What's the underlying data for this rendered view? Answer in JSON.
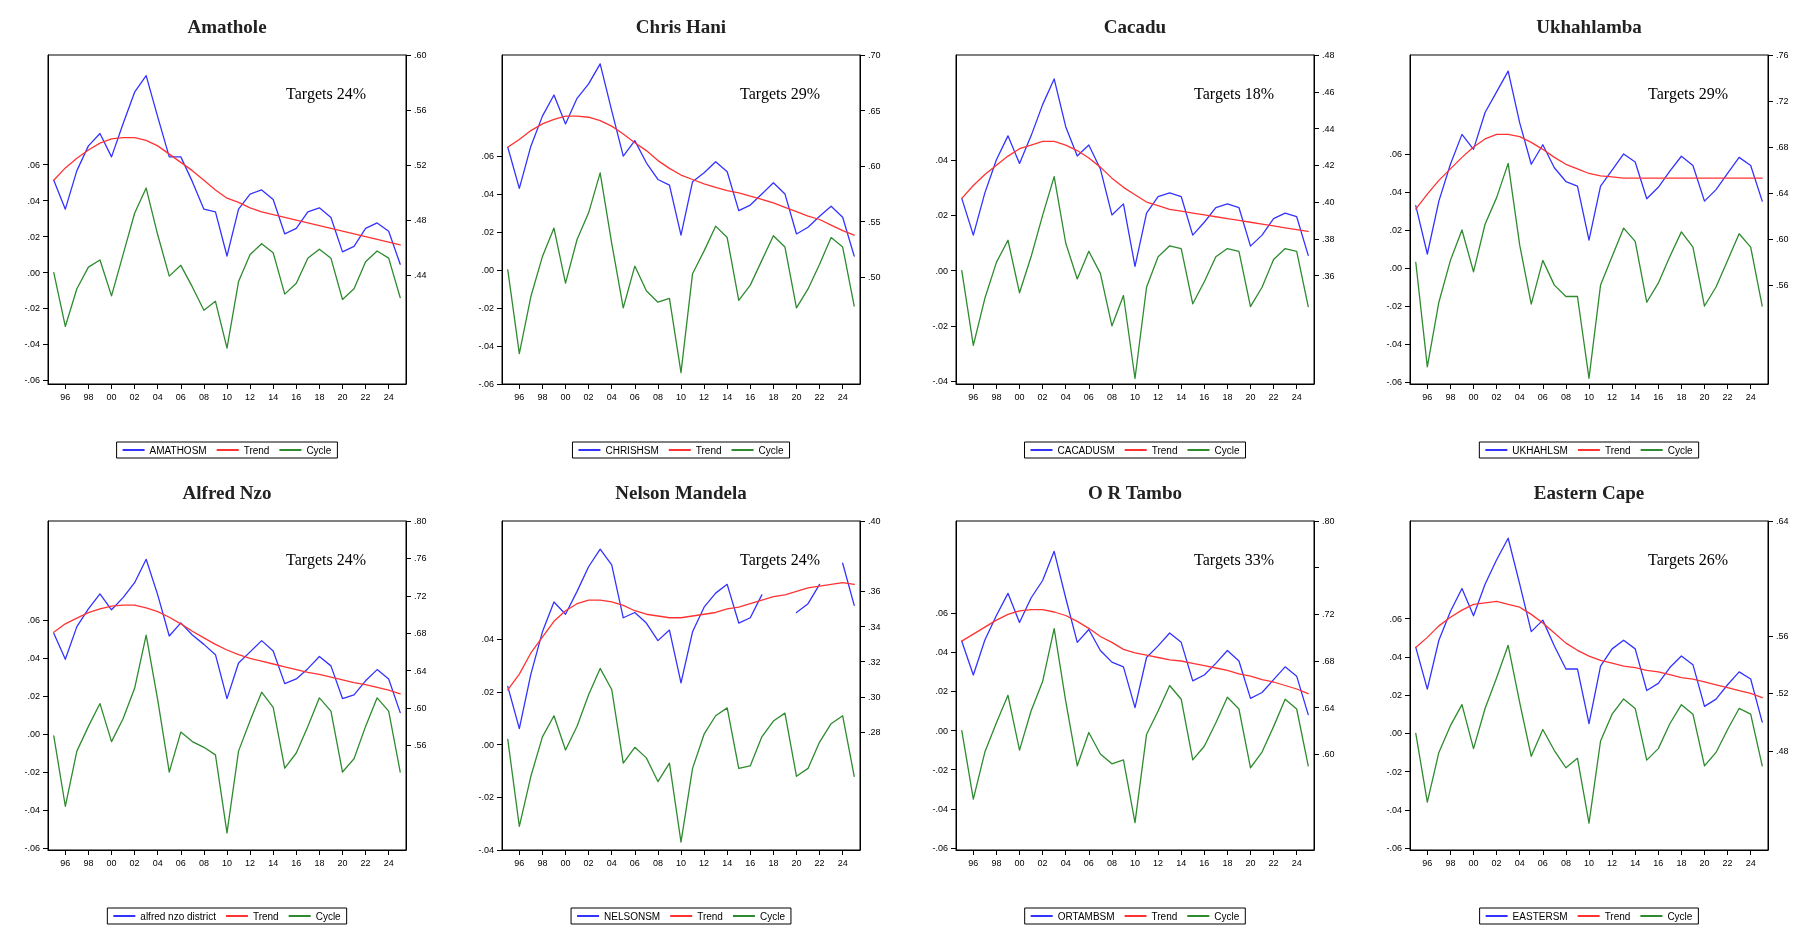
{
  "chart_data": [
    {
      "type": "line",
      "title": "Amathole",
      "annotations": [
        "Targets 24%"
      ],
      "legend": "bottom",
      "x": [
        1995,
        1996,
        1997,
        1998,
        1999,
        2000,
        2001,
        2002,
        2003,
        2004,
        2005,
        2006,
        2007,
        2008,
        2009,
        2010,
        2011,
        2012,
        2013,
        2014,
        2015,
        2016,
        2017,
        2018,
        2019,
        2020,
        2021,
        2022,
        2023,
        2024,
        2025
      ],
      "xlim": [
        1994.5,
        2025.5
      ],
      "xticks": [
        {
          "value": 1996,
          "label": "96"
        },
        {
          "value": 1998,
          "label": "98"
        },
        {
          "value": 2000,
          "label": "00"
        },
        {
          "value": 2002,
          "label": "02"
        },
        {
          "value": 2004,
          "label": "04"
        },
        {
          "value": 2006,
          "label": "06"
        },
        {
          "value": 2008,
          "label": "08"
        },
        {
          "value": 2010,
          "label": "10"
        },
        {
          "value": 2012,
          "label": "12"
        },
        {
          "value": 2014,
          "label": "14"
        },
        {
          "value": 2016,
          "label": "16"
        },
        {
          "value": 2018,
          "label": "18"
        },
        {
          "value": 2020,
          "label": "20"
        },
        {
          "value": 2022,
          "label": "22"
        },
        {
          "value": 2024,
          "label": "24"
        }
      ],
      "ylim": [
        -0.062,
        0.121
      ],
      "yticks": [
        {
          "value": -0.06,
          "label": "-.06"
        },
        {
          "value": -0.04,
          "label": "-.04"
        },
        {
          "value": -0.02,
          "label": "-.02"
        },
        {
          "value": 0,
          "label": ".00"
        },
        {
          "value": 0.02,
          "label": ".02"
        },
        {
          "value": 0.04,
          "label": ".04"
        },
        {
          "value": 0.06,
          "label": ".06"
        }
      ],
      "y2lim": [
        0.361,
        0.6
      ],
      "y2ticks": [
        {
          "value": 0.44,
          "label": ".44"
        },
        {
          "value": 0.48,
          "label": ".48"
        },
        {
          "value": 0.52,
          "label": ".52"
        },
        {
          "value": 0.56,
          "label": ".56"
        },
        {
          "value": 0.6,
          "label": ".60"
        }
      ],
      "series": [
        {
          "name": "AMATHOSM",
          "color": "#3333ff",
          "axis": "y2",
          "values": [
            0.509,
            0.488,
            0.516,
            0.534,
            0.543,
            0.526,
            0.55,
            0.573,
            0.585,
            0.555,
            0.526,
            0.526,
            0.508,
            0.488,
            0.486,
            0.454,
            0.488,
            0.499,
            0.502,
            0.495,
            0.47,
            0.474,
            0.486,
            0.489,
            0.482,
            0.457,
            0.461,
            0.474,
            0.478,
            0.472,
            0.448
          ]
        },
        {
          "name": "Trend",
          "color": "#ff3333",
          "axis": "y2",
          "values": [
            0.509,
            0.518,
            0.525,
            0.531,
            0.536,
            0.539,
            0.54,
            0.54,
            0.538,
            0.534,
            0.528,
            0.522,
            0.516,
            0.509,
            0.502,
            0.496,
            0.493,
            0.489,
            0.486,
            0.484,
            0.482,
            0.48,
            0.478,
            0.476,
            0.474,
            0.472,
            0.47,
            0.468,
            0.466,
            0.464,
            0.462
          ]
        },
        {
          "name": "Cycle",
          "color": "#2e8b2e",
          "values": [
            0,
            -0.03,
            -0.009,
            0.003,
            0.007,
            -0.013,
            0.01,
            0.033,
            0.047,
            0.021,
            -0.002,
            0.004,
            -0.008,
            -0.021,
            -0.016,
            -0.042,
            -0.005,
            0.01,
            0.016,
            0.011,
            -0.012,
            -0.006,
            0.008,
            0.013,
            0.008,
            -0.015,
            -0.009,
            0.006,
            0.012,
            0.008,
            -0.014
          ]
        }
      ]
    },
    {
      "type": "line",
      "title": "Chris Hani",
      "annotations": [
        "Targets 29%"
      ],
      "legend": "bottom",
      "x": [
        1995,
        1996,
        1997,
        1998,
        1999,
        2000,
        2001,
        2002,
        2003,
        2004,
        2005,
        2006,
        2007,
        2008,
        2009,
        2010,
        2011,
        2012,
        2013,
        2014,
        2015,
        2016,
        2017,
        2018,
        2019,
        2020,
        2021,
        2022,
        2023,
        2024,
        2025
      ],
      "xlim": [
        1994.5,
        2025.5
      ],
      "xticks": [
        {
          "value": 1996,
          "label": "96"
        },
        {
          "value": 1998,
          "label": "98"
        },
        {
          "value": 2000,
          "label": "00"
        },
        {
          "value": 2002,
          "label": "02"
        },
        {
          "value": 2004,
          "label": "04"
        },
        {
          "value": 2006,
          "label": "06"
        },
        {
          "value": 2008,
          "label": "08"
        },
        {
          "value": 2010,
          "label": "10"
        },
        {
          "value": 2012,
          "label": "12"
        },
        {
          "value": 2014,
          "label": "14"
        },
        {
          "value": 2016,
          "label": "16"
        },
        {
          "value": 2018,
          "label": "18"
        },
        {
          "value": 2020,
          "label": "20"
        },
        {
          "value": 2022,
          "label": "22"
        },
        {
          "value": 2024,
          "label": "24"
        }
      ],
      "ylim": [
        -0.06,
        0.113
      ],
      "yticks": [
        {
          "value": -0.06,
          "label": "-.06"
        },
        {
          "value": -0.04,
          "label": "-.04"
        },
        {
          "value": -0.02,
          "label": "-.02"
        },
        {
          "value": 0,
          "label": ".00"
        },
        {
          "value": 0.02,
          "label": ".02"
        },
        {
          "value": 0.04,
          "label": ".04"
        },
        {
          "value": 0.06,
          "label": ".06"
        }
      ],
      "y2lim": [
        0.404,
        0.7
      ],
      "y2ticks": [
        {
          "value": 0.5,
          "label": ".50"
        },
        {
          "value": 0.55,
          "label": ".55"
        },
        {
          "value": 0.6,
          "label": ".60"
        },
        {
          "value": 0.65,
          "label": ".65"
        },
        {
          "value": 0.7,
          "label": ".70"
        }
      ],
      "series": [
        {
          "name": "CHRISHSM",
          "color": "#3333ff",
          "axis": "y2",
          "values": [
            0.617,
            0.58,
            0.618,
            0.645,
            0.664,
            0.638,
            0.661,
            0.674,
            0.692,
            0.65,
            0.609,
            0.623,
            0.603,
            0.588,
            0.583,
            0.538,
            0.586,
            0.594,
            0.604,
            0.595,
            0.56,
            0.565,
            0.575,
            0.585,
            0.575,
            0.539,
            0.545,
            0.555,
            0.564,
            0.554,
            0.519
          ]
        },
        {
          "name": "Trend",
          "color": "#ff3333",
          "axis": "y2",
          "values": [
            0.617,
            0.624,
            0.632,
            0.638,
            0.642,
            0.645,
            0.645,
            0.644,
            0.641,
            0.636,
            0.629,
            0.621,
            0.614,
            0.605,
            0.598,
            0.592,
            0.588,
            0.584,
            0.581,
            0.578,
            0.576,
            0.573,
            0.57,
            0.567,
            0.563,
            0.559,
            0.555,
            0.552,
            0.547,
            0.542,
            0.538
          ]
        },
        {
          "name": "Cycle",
          "color": "#2e8b2e",
          "values": [
            0,
            -0.044,
            -0.014,
            0.007,
            0.022,
            -0.007,
            0.016,
            0.03,
            0.051,
            0.014,
            -0.02,
            0.002,
            -0.011,
            -0.017,
            -0.015,
            -0.054,
            -0.002,
            0.01,
            0.023,
            0.017,
            -0.016,
            -0.008,
            0.005,
            0.018,
            0.012,
            -0.02,
            -0.01,
            0.003,
            0.017,
            0.012,
            -0.019
          ]
        }
      ]
    },
    {
      "type": "line",
      "title": "Cacadu",
      "annotations": [
        "Targets 18%"
      ],
      "legend": "bottom",
      "x": [
        1995,
        1996,
        1997,
        1998,
        1999,
        2000,
        2001,
        2002,
        2003,
        2004,
        2005,
        2006,
        2007,
        2008,
        2009,
        2010,
        2011,
        2012,
        2013,
        2014,
        2015,
        2016,
        2017,
        2018,
        2019,
        2020,
        2021,
        2022,
        2023,
        2024,
        2025
      ],
      "xlim": [
        1994.5,
        2025.5
      ],
      "xticks": [
        {
          "value": 1996,
          "label": "96"
        },
        {
          "value": 1998,
          "label": "98"
        },
        {
          "value": 2000,
          "label": "00"
        },
        {
          "value": 2002,
          "label": "02"
        },
        {
          "value": 2004,
          "label": "04"
        },
        {
          "value": 2006,
          "label": "06"
        },
        {
          "value": 2008,
          "label": "08"
        },
        {
          "value": 2010,
          "label": "10"
        },
        {
          "value": 2012,
          "label": "12"
        },
        {
          "value": 2014,
          "label": "14"
        },
        {
          "value": 2016,
          "label": "16"
        },
        {
          "value": 2018,
          "label": "18"
        },
        {
          "value": 2020,
          "label": "20"
        },
        {
          "value": 2022,
          "label": "22"
        },
        {
          "value": 2024,
          "label": "24"
        }
      ],
      "ylim": [
        -0.041,
        0.078
      ],
      "yticks": [
        {
          "value": -0.04,
          "label": "-.04"
        },
        {
          "value": -0.02,
          "label": "-.02"
        },
        {
          "value": 0,
          "label": ".00"
        },
        {
          "value": 0.02,
          "label": ".02"
        },
        {
          "value": 0.04,
          "label": ".04"
        }
      ],
      "y2lim": [
        0.301,
        0.48
      ],
      "y2ticks": [
        {
          "value": 0.36,
          "label": ".36"
        },
        {
          "value": 0.38,
          "label": ".38"
        },
        {
          "value": 0.4,
          "label": ".40"
        },
        {
          "value": 0.42,
          "label": ".42"
        },
        {
          "value": 0.44,
          "label": ".44"
        },
        {
          "value": 0.46,
          "label": ".46"
        },
        {
          "value": 0.48,
          "label": ".48"
        }
      ],
      "series": [
        {
          "name": "CACADUSM",
          "color": "#3333ff",
          "axis": "y2",
          "values": [
            0.402,
            0.382,
            0.405,
            0.423,
            0.436,
            0.421,
            0.436,
            0.453,
            0.467,
            0.441,
            0.425,
            0.431,
            0.418,
            0.393,
            0.399,
            0.365,
            0.394,
            0.403,
            0.405,
            0.403,
            0.382,
            0.389,
            0.397,
            0.399,
            0.397,
            0.376,
            0.382,
            0.391,
            0.394,
            0.392,
            0.371
          ]
        },
        {
          "name": "Trend",
          "color": "#ff3333",
          "axis": "y2",
          "values": [
            0.402,
            0.409,
            0.415,
            0.42,
            0.425,
            0.429,
            0.431,
            0.433,
            0.433,
            0.431,
            0.428,
            0.424,
            0.419,
            0.413,
            0.408,
            0.404,
            0.4,
            0.398,
            0.396,
            0.395,
            0.394,
            0.393,
            0.392,
            0.391,
            0.39,
            0.389,
            0.388,
            0.387,
            0.386,
            0.385,
            0.384
          ]
        },
        {
          "name": "Cycle",
          "color": "#2e8b2e",
          "values": [
            0,
            -0.027,
            -0.01,
            0.003,
            0.011,
            -0.008,
            0.005,
            0.02,
            0.034,
            0.01,
            -0.003,
            0.007,
            -0.001,
            -0.02,
            -0.009,
            -0.039,
            -0.006,
            0.005,
            0.009,
            0.008,
            -0.012,
            -0.004,
            0.005,
            0.008,
            0.007,
            -0.013,
            -0.006,
            0.004,
            0.008,
            0.007,
            -0.013
          ]
        }
      ]
    },
    {
      "type": "line",
      "title": "Ukhahlamba",
      "annotations": [
        "Targets 29%"
      ],
      "legend": "bottom",
      "x": [
        1995,
        1996,
        1997,
        1998,
        1999,
        2000,
        2001,
        2002,
        2003,
        2004,
        2005,
        2006,
        2007,
        2008,
        2009,
        2010,
        2011,
        2012,
        2013,
        2014,
        2015,
        2016,
        2017,
        2018,
        2019,
        2020,
        2021,
        2022,
        2023,
        2024,
        2025
      ],
      "xlim": [
        1994.5,
        2025.5
      ],
      "xticks": [
        {
          "value": 1996,
          "label": "96"
        },
        {
          "value": 1998,
          "label": "98"
        },
        {
          "value": 2000,
          "label": "00"
        },
        {
          "value": 2002,
          "label": "02"
        },
        {
          "value": 2004,
          "label": "04"
        },
        {
          "value": 2006,
          "label": "06"
        },
        {
          "value": 2008,
          "label": "08"
        },
        {
          "value": 2010,
          "label": "10"
        },
        {
          "value": 2012,
          "label": "12"
        },
        {
          "value": 2014,
          "label": "14"
        },
        {
          "value": 2016,
          "label": "16"
        },
        {
          "value": 2018,
          "label": "18"
        },
        {
          "value": 2020,
          "label": "20"
        },
        {
          "value": 2022,
          "label": "22"
        },
        {
          "value": 2024,
          "label": "24"
        }
      ],
      "ylim": [
        -0.061,
        0.112
      ],
      "yticks": [
        {
          "value": -0.06,
          "label": "-.06"
        },
        {
          "value": -0.04,
          "label": "-.04"
        },
        {
          "value": -0.02,
          "label": "-.02"
        },
        {
          "value": 0,
          "label": ".00"
        },
        {
          "value": 0.02,
          "label": ".02"
        },
        {
          "value": 0.04,
          "label": ".04"
        },
        {
          "value": 0.06,
          "label": ".06"
        }
      ],
      "y2lim": [
        0.474,
        0.76
      ],
      "y2ticks": [
        {
          "value": 0.56,
          "label": ".56"
        },
        {
          "value": 0.6,
          "label": ".60"
        },
        {
          "value": 0.64,
          "label": ".64"
        },
        {
          "value": 0.68,
          "label": ".68"
        },
        {
          "value": 0.72,
          "label": ".72"
        },
        {
          "value": 0.76,
          "label": ".76"
        }
      ],
      "series": [
        {
          "name": "UKHAHLSM",
          "color": "#3333ff",
          "axis": "y2",
          "values": [
            0.629,
            0.587,
            0.633,
            0.665,
            0.691,
            0.678,
            0.71,
            0.728,
            0.746,
            0.701,
            0.665,
            0.682,
            0.662,
            0.65,
            0.646,
            0.599,
            0.646,
            0.66,
            0.674,
            0.667,
            0.635,
            0.645,
            0.659,
            0.672,
            0.664,
            0.633,
            0.643,
            0.657,
            0.671,
            0.664,
            0.633
          ]
        },
        {
          "name": "Trend",
          "color": "#ff3333",
          "axis": "y2",
          "values": [
            0.626,
            0.639,
            0.651,
            0.661,
            0.671,
            0.68,
            0.687,
            0.691,
            0.691,
            0.689,
            0.684,
            0.678,
            0.671,
            0.665,
            0.661,
            0.657,
            0.655,
            0.654,
            0.653,
            0.653,
            0.653,
            0.653,
            0.653,
            0.653,
            0.653,
            0.653,
            0.653,
            0.653,
            0.653,
            0.653,
            0.653
          ]
        },
        {
          "name": "Cycle",
          "color": "#2e8b2e",
          "values": [
            0.003,
            -0.052,
            -0.018,
            0.004,
            0.02,
            -0.002,
            0.023,
            0.037,
            0.055,
            0.012,
            -0.019,
            0.004,
            -0.009,
            -0.015,
            -0.015,
            -0.058,
            -0.009,
            0.006,
            0.021,
            0.014,
            -0.018,
            -0.008,
            0.006,
            0.019,
            0.011,
            -0.02,
            -0.01,
            0.004,
            0.018,
            0.011,
            -0.02
          ]
        }
      ]
    },
    {
      "type": "line",
      "title": "Alfred Nzo",
      "annotations": [
        "Targets 24%"
      ],
      "legend": "bottom",
      "x": [
        1995,
        1996,
        1997,
        1998,
        1999,
        2000,
        2001,
        2002,
        2003,
        2004,
        2005,
        2006,
        2007,
        2008,
        2009,
        2010,
        2011,
        2012,
        2013,
        2014,
        2015,
        2016,
        2017,
        2018,
        2019,
        2020,
        2021,
        2022,
        2023,
        2024,
        2025
      ],
      "xlim": [
        1994.5,
        2025.5
      ],
      "xticks": [
        {
          "value": 1996,
          "label": "96"
        },
        {
          "value": 1998,
          "label": "98"
        },
        {
          "value": 2000,
          "label": "00"
        },
        {
          "value": 2002,
          "label": "02"
        },
        {
          "value": 2004,
          "label": "04"
        },
        {
          "value": 2006,
          "label": "06"
        },
        {
          "value": 2008,
          "label": "08"
        },
        {
          "value": 2010,
          "label": "10"
        },
        {
          "value": 2012,
          "label": "12"
        },
        {
          "value": 2014,
          "label": "14"
        },
        {
          "value": 2016,
          "label": "16"
        },
        {
          "value": 2018,
          "label": "18"
        },
        {
          "value": 2020,
          "label": "20"
        },
        {
          "value": 2022,
          "label": "22"
        },
        {
          "value": 2024,
          "label": "24"
        }
      ],
      "ylim": [
        -0.061,
        0.112
      ],
      "yticks": [
        {
          "value": -0.06,
          "label": "-.06"
        },
        {
          "value": -0.04,
          "label": "-.04"
        },
        {
          "value": -0.02,
          "label": "-.02"
        },
        {
          "value": 0,
          "label": ".00"
        },
        {
          "value": 0.02,
          "label": ".02"
        },
        {
          "value": 0.04,
          "label": ".04"
        },
        {
          "value": 0.06,
          "label": ".06"
        }
      ],
      "y2lim": [
        0.448,
        0.8
      ],
      "y2ticks": [
        {
          "value": 0.56,
          "label": ".56"
        },
        {
          "value": 0.6,
          "label": ".60"
        },
        {
          "value": 0.64,
          "label": ".64"
        },
        {
          "value": 0.68,
          "label": ".68"
        },
        {
          "value": 0.72,
          "label": ".72"
        },
        {
          "value": 0.76,
          "label": ".76"
        },
        {
          "value": 0.8,
          "label": ".80"
        }
      ],
      "series": [
        {
          "name": "alfred nzo district",
          "color": "#3333ff",
          "axis": "y2",
          "values": [
            0.68,
            0.652,
            0.687,
            0.706,
            0.722,
            0.705,
            0.718,
            0.734,
            0.759,
            0.721,
            0.677,
            0.691,
            0.678,
            0.668,
            0.657,
            0.61,
            0.648,
            0.66,
            0.672,
            0.661,
            0.626,
            0.631,
            0.642,
            0.655,
            0.645,
            0.61,
            0.614,
            0.629,
            0.641,
            0.631,
            0.595
          ]
        },
        {
          "name": "Trend",
          "color": "#ff3333",
          "axis": "y2",
          "values": [
            0.681,
            0.69,
            0.696,
            0.702,
            0.706,
            0.709,
            0.71,
            0.71,
            0.707,
            0.703,
            0.697,
            0.69,
            0.682,
            0.675,
            0.668,
            0.662,
            0.657,
            0.653,
            0.65,
            0.647,
            0.644,
            0.641,
            0.638,
            0.636,
            0.633,
            0.63,
            0.627,
            0.625,
            0.622,
            0.619,
            0.615
          ]
        },
        {
          "name": "Cycle",
          "color": "#2e8b2e",
          "values": [
            -0.001,
            -0.038,
            -0.009,
            0.004,
            0.016,
            -0.004,
            0.008,
            0.024,
            0.052,
            0.018,
            -0.02,
            0.001,
            -0.004,
            -0.007,
            -0.011,
            -0.052,
            -0.009,
            0.007,
            0.022,
            0.014,
            -0.018,
            -0.01,
            0.004,
            0.019,
            0.012,
            -0.02,
            -0.013,
            0.004,
            0.019,
            0.012,
            -0.02
          ]
        }
      ]
    },
    {
      "type": "line",
      "title": "Nelson Mandela",
      "annotations": [
        "Targets 24%"
      ],
      "legend": "bottom",
      "x": [
        1995,
        1996,
        1997,
        1998,
        1999,
        2000,
        2001,
        2002,
        2003,
        2004,
        2005,
        2006,
        2007,
        2008,
        2009,
        2010,
        2011,
        2012,
        2013,
        2014,
        2015,
        2016,
        2017,
        2018,
        2019,
        2020,
        2021,
        2022,
        2023,
        2024,
        2025
      ],
      "xlim": [
        1994.5,
        2025.5
      ],
      "xticks": [
        {
          "value": 1996,
          "label": "96"
        },
        {
          "value": 1998,
          "label": "98"
        },
        {
          "value": 2000,
          "label": "00"
        },
        {
          "value": 2002,
          "label": "02"
        },
        {
          "value": 2004,
          "label": "04"
        },
        {
          "value": 2006,
          "label": "06"
        },
        {
          "value": 2008,
          "label": "08"
        },
        {
          "value": 2010,
          "label": "10"
        },
        {
          "value": 2012,
          "label": "12"
        },
        {
          "value": 2014,
          "label": "14"
        },
        {
          "value": 2016,
          "label": "16"
        },
        {
          "value": 2018,
          "label": "18"
        },
        {
          "value": 2020,
          "label": "20"
        },
        {
          "value": 2022,
          "label": "22"
        },
        {
          "value": 2024,
          "label": "24"
        }
      ],
      "ylim": [
        -0.04,
        0.085
      ],
      "yticks": [
        {
          "value": -0.04,
          "label": "-.04"
        },
        {
          "value": -0.02,
          "label": "-.02"
        },
        {
          "value": 0,
          "label": ".00"
        },
        {
          "value": 0.02,
          "label": ".02"
        },
        {
          "value": 0.04,
          "label": ".04"
        }
      ],
      "y2lim": [
        0.213,
        0.4
      ],
      "y2ticks": [
        {
          "value": 0.28,
          "label": ".28"
        },
        {
          "value": 0.3,
          "label": ".30"
        },
        {
          "value": 0.32,
          "label": ".32"
        },
        {
          "value": 0.34,
          "label": ".34"
        },
        {
          "value": 0.36,
          "label": ".36"
        },
        {
          "value": 0.4,
          "label": ".40"
        }
      ],
      "series": [
        {
          "name": "NELSONSM",
          "color": "#3333ff",
          "axis": "y2",
          "values": [
            0.306,
            0.282,
            0.313,
            0.337,
            0.354,
            0.347,
            0.36,
            0.374,
            0.384,
            0.375,
            0.345,
            0.348,
            0.342,
            0.332,
            0.338,
            0.308,
            0.337,
            0.351,
            0.359,
            0.364,
            0.342,
            0.345,
            0.358,
            null,
            null,
            0.348,
            0.353,
            0.364,
            null,
            0.376,
            0.352
          ]
        },
        {
          "name": "Trend",
          "color": "#ff3333",
          "axis": "y2",
          "values": [
            0.304,
            0.313,
            0.325,
            0.334,
            0.343,
            0.349,
            0.353,
            0.355,
            0.355,
            0.354,
            0.352,
            0.349,
            0.347,
            0.346,
            0.345,
            0.345,
            0.346,
            0.347,
            0.348,
            0.35,
            0.351,
            0.353,
            0.355,
            0.357,
            0.358,
            0.36,
            0.362,
            0.363,
            0.364,
            0.365,
            0.364
          ]
        },
        {
          "name": "Cycle",
          "color": "#2e8b2e",
          "values": [
            0.002,
            -0.031,
            -0.012,
            0.003,
            0.011,
            -0.002,
            0.007,
            0.019,
            0.029,
            0.021,
            -0.007,
            -0.001,
            -0.005,
            -0.014,
            -0.007,
            -0.037,
            -0.009,
            0.004,
            0.011,
            0.014,
            -0.009,
            -0.008,
            0.003,
            0.009,
            0.012,
            -0.012,
            -0.009,
            0.001,
            0.008,
            0.011,
            -0.012
          ]
        }
      ]
    },
    {
      "type": "line",
      "title": "O R Tambo",
      "annotations": [
        "Targets 33%"
      ],
      "legend": "bottom",
      "x": [
        1995,
        1996,
        1997,
        1998,
        1999,
        2000,
        2001,
        2002,
        2003,
        2004,
        2005,
        2006,
        2007,
        2008,
        2009,
        2010,
        2011,
        2012,
        2013,
        2014,
        2015,
        2016,
        2017,
        2018,
        2019,
        2020,
        2021,
        2022,
        2023,
        2024,
        2025
      ],
      "xlim": [
        1994.5,
        2025.5
      ],
      "xticks": [
        {
          "value": 1996,
          "label": "96"
        },
        {
          "value": 1998,
          "label": "98"
        },
        {
          "value": 2000,
          "label": "00"
        },
        {
          "value": 2002,
          "label": "02"
        },
        {
          "value": 2004,
          "label": "04"
        },
        {
          "value": 2006,
          "label": "06"
        },
        {
          "value": 2008,
          "label": "08"
        },
        {
          "value": 2010,
          "label": "10"
        },
        {
          "value": 2012,
          "label": "12"
        },
        {
          "value": 2014,
          "label": "14"
        },
        {
          "value": 2016,
          "label": "16"
        },
        {
          "value": 2018,
          "label": "18"
        },
        {
          "value": 2020,
          "label": "20"
        },
        {
          "value": 2022,
          "label": "22"
        },
        {
          "value": 2024,
          "label": "24"
        }
      ],
      "ylim": [
        -0.061,
        0.107
      ],
      "yticks": [
        {
          "value": -0.06,
          "label": "-.06"
        },
        {
          "value": -0.04,
          "label": "-.04"
        },
        {
          "value": -0.02,
          "label": "-.02"
        },
        {
          "value": 0,
          "label": ".00"
        },
        {
          "value": 0.02,
          "label": ".02"
        },
        {
          "value": 0.04,
          "label": ".04"
        },
        {
          "value": 0.06,
          "label": ".06"
        }
      ],
      "y2lim": [
        0.518,
        0.8
      ],
      "y2ticks": [
        {
          "value": 0.6,
          "label": ".60"
        },
        {
          "value": 0.64,
          "label": ".64"
        },
        {
          "value": 0.68,
          "label": ".68"
        },
        {
          "value": 0.72,
          "label": ".72"
        },
        {
          "value": 0.76,
          "label": null
        },
        {
          "value": 0.8,
          "label": ".80"
        }
      ],
      "series": [
        {
          "name": "ORTAMBSM",
          "color": "#3333ff",
          "axis": "y2",
          "values": [
            0.697,
            0.668,
            0.698,
            0.719,
            0.738,
            0.713,
            0.734,
            0.749,
            0.774,
            0.734,
            0.696,
            0.707,
            0.689,
            0.679,
            0.675,
            0.64,
            0.683,
            0.693,
            0.704,
            0.696,
            0.663,
            0.668,
            0.678,
            0.689,
            0.68,
            0.648,
            0.653,
            0.664,
            0.675,
            0.667,
            0.634
          ]
        },
        {
          "name": "Trend",
          "color": "#ff3333",
          "axis": "y2",
          "values": [
            0.697,
            0.703,
            0.709,
            0.715,
            0.72,
            0.723,
            0.724,
            0.724,
            0.722,
            0.719,
            0.714,
            0.708,
            0.701,
            0.696,
            0.69,
            0.687,
            0.685,
            0.683,
            0.681,
            0.68,
            0.678,
            0.676,
            0.674,
            0.672,
            0.669,
            0.667,
            0.664,
            0.662,
            0.659,
            0.656,
            0.652
          ]
        },
        {
          "name": "Cycle",
          "color": "#2e8b2e",
          "values": [
            0,
            -0.035,
            -0.011,
            0.004,
            0.018,
            -0.01,
            0.01,
            0.025,
            0.052,
            0.015,
            -0.018,
            -0.001,
            -0.012,
            -0.017,
            -0.015,
            -0.047,
            -0.002,
            0.01,
            0.023,
            0.016,
            -0.015,
            -0.008,
            0.004,
            0.017,
            0.011,
            -0.019,
            -0.011,
            0.002,
            0.016,
            0.011,
            -0.018
          ]
        }
      ]
    },
    {
      "type": "line",
      "title": "Eastern Cape",
      "annotations": [
        "Targets 26%"
      ],
      "legend": "bottom",
      "x": [
        1995,
        1996,
        1997,
        1998,
        1999,
        2000,
        2001,
        2002,
        2003,
        2004,
        2005,
        2006,
        2007,
        2008,
        2009,
        2010,
        2011,
        2012,
        2013,
        2014,
        2015,
        2016,
        2017,
        2018,
        2019,
        2020,
        2021,
        2022,
        2023,
        2024,
        2025
      ],
      "xlim": [
        1994.5,
        2025.5
      ],
      "xticks": [
        {
          "value": 1996,
          "label": "96"
        },
        {
          "value": 1998,
          "label": "98"
        },
        {
          "value": 2000,
          "label": "00"
        },
        {
          "value": 2002,
          "label": "02"
        },
        {
          "value": 2004,
          "label": "04"
        },
        {
          "value": 2006,
          "label": "06"
        },
        {
          "value": 2008,
          "label": "08"
        },
        {
          "value": 2010,
          "label": "10"
        },
        {
          "value": 2012,
          "label": "12"
        },
        {
          "value": 2014,
          "label": "14"
        },
        {
          "value": 2016,
          "label": "16"
        },
        {
          "value": 2018,
          "label": "18"
        },
        {
          "value": 2020,
          "label": "20"
        },
        {
          "value": 2022,
          "label": "22"
        },
        {
          "value": 2024,
          "label": "24"
        }
      ],
      "ylim": [
        -0.061,
        0.111
      ],
      "yticks": [
        {
          "value": -0.06,
          "label": "-.06"
        },
        {
          "value": -0.04,
          "label": "-.04"
        },
        {
          "value": -0.02,
          "label": "-.02"
        },
        {
          "value": 0,
          "label": ".00"
        },
        {
          "value": 0.02,
          "label": ".02"
        },
        {
          "value": 0.04,
          "label": ".04"
        },
        {
          "value": 0.06,
          "label": ".06"
        }
      ],
      "y2lim": [
        0.411,
        0.64
      ],
      "y2ticks": [
        {
          "value": 0.48,
          "label": ".48"
        },
        {
          "value": 0.52,
          "label": ".52"
        },
        {
          "value": 0.56,
          "label": ".56"
        },
        {
          "value": 0.64,
          "label": ".64"
        }
      ],
      "series": [
        {
          "name": "EASTERSM",
          "color": "#3333ff",
          "axis": "y2",
          "values": [
            0.552,
            0.523,
            0.557,
            0.577,
            0.593,
            0.574,
            0.596,
            0.613,
            0.628,
            0.596,
            0.563,
            0.571,
            0.553,
            0.537,
            0.537,
            0.499,
            0.539,
            0.551,
            0.557,
            0.551,
            0.522,
            0.527,
            0.538,
            0.546,
            0.54,
            0.511,
            0.516,
            0.526,
            0.535,
            0.53,
            0.5
          ]
        },
        {
          "name": "Trend",
          "color": "#ff3333",
          "axis": "y2",
          "values": [
            0.552,
            0.559,
            0.567,
            0.573,
            0.578,
            0.582,
            0.583,
            0.584,
            0.582,
            0.58,
            0.575,
            0.569,
            0.562,
            0.555,
            0.55,
            0.546,
            0.543,
            0.541,
            0.539,
            0.538,
            0.536,
            0.535,
            0.533,
            0.531,
            0.53,
            0.528,
            0.526,
            0.524,
            0.522,
            0.52,
            0.517
          ]
        },
        {
          "name": "Cycle",
          "color": "#2e8b2e",
          "values": [
            0,
            -0.036,
            -0.01,
            0.004,
            0.015,
            -0.008,
            0.013,
            0.029,
            0.046,
            0.016,
            -0.012,
            0.002,
            -0.009,
            -0.018,
            -0.013,
            -0.047,
            -0.004,
            0.01,
            0.018,
            0.013,
            -0.014,
            -0.008,
            0.005,
            0.015,
            0.01,
            -0.017,
            -0.01,
            0.002,
            0.013,
            0.01,
            -0.017
          ]
        }
      ]
    }
  ]
}
